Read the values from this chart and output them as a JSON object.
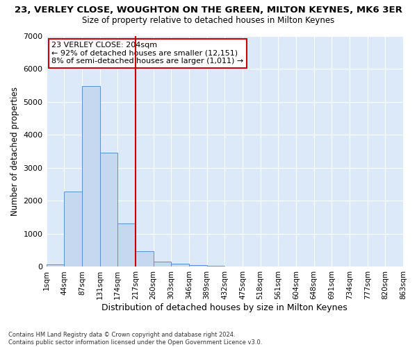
{
  "title": "23, VERLEY CLOSE, WOUGHTON ON THE GREEN, MILTON KEYNES, MK6 3ER",
  "subtitle": "Size of property relative to detached houses in Milton Keynes",
  "xlabel": "Distribution of detached houses by size in Milton Keynes",
  "ylabel": "Number of detached properties",
  "bar_color": "#c5d8f0",
  "bar_edge_color": "#5b8fd4",
  "background_color": "#dce9f8",
  "fig_background": "#ffffff",
  "grid_color": "#ffffff",
  "bin_labels": [
    "1sqm",
    "44sqm",
    "87sqm",
    "131sqm",
    "174sqm",
    "217sqm",
    "260sqm",
    "303sqm",
    "346sqm",
    "389sqm",
    "432sqm",
    "475sqm",
    "518sqm",
    "561sqm",
    "604sqm",
    "648sqm",
    "691sqm",
    "734sqm",
    "777sqm",
    "820sqm",
    "863sqm"
  ],
  "bar_heights": [
    75,
    2280,
    5480,
    3450,
    1310,
    470,
    155,
    95,
    60,
    35,
    0,
    0,
    0,
    0,
    0,
    0,
    0,
    0,
    0,
    0
  ],
  "n_bins": 20,
  "vline_bin": 5,
  "vline_color": "#cc0000",
  "annotation_text": "23 VERLEY CLOSE: 204sqm\n← 92% of detached houses are smaller (12,151)\n8% of semi-detached houses are larger (1,011) →",
  "annotation_box_color": "#ffffff",
  "annotation_box_edge": "#cc0000",
  "ylim": [
    0,
    7000
  ],
  "yticks": [
    0,
    1000,
    2000,
    3000,
    4000,
    5000,
    6000,
    7000
  ],
  "footer": "Contains HM Land Registry data © Crown copyright and database right 2024.\nContains public sector information licensed under the Open Government Licence v3.0."
}
